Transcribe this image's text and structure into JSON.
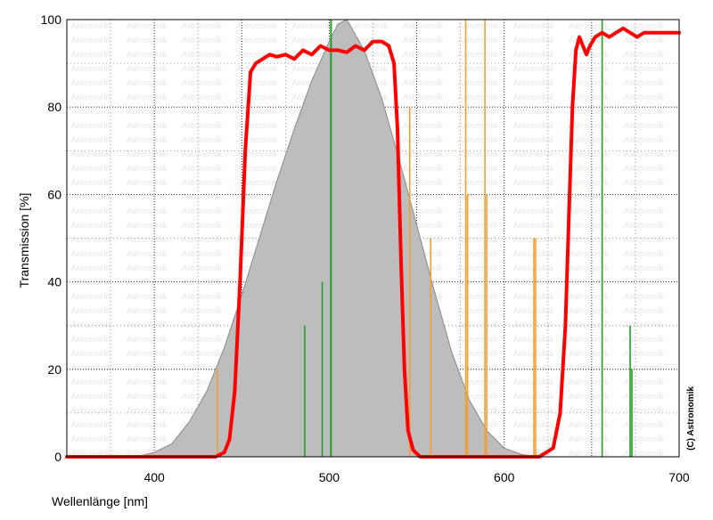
{
  "chart_data": {
    "type": "line",
    "title": "",
    "xlabel": "Wellenlänge [nm]",
    "ylabel": "Transmission [%]",
    "xlim": [
      350,
      700
    ],
    "ylim": [
      0,
      100
    ],
    "x_ticks": [
      400,
      500,
      600,
      700
    ],
    "y_ticks": [
      0,
      20,
      40,
      60,
      80,
      100
    ],
    "grid": true,
    "copyright": "(C) Astronomik",
    "watermark": "Astronomik",
    "colors": {
      "filter": "#ff0000",
      "eye_area": "#bdbdbd",
      "eye_stroke": "#8a8a8a",
      "lines_orange": "#f0a030",
      "lines_green": "#20a020",
      "grid_major": "#000000",
      "grid_minor": "#888888"
    },
    "series": [
      {
        "kind": "area",
        "x": [
          350,
          390,
          400,
          410,
          420,
          430,
          440,
          450,
          460,
          470,
          480,
          490,
          500,
          505,
          510,
          520,
          530,
          540,
          550,
          560,
          570,
          580,
          590,
          600,
          610,
          620,
          700
        ],
        "y": [
          0,
          0,
          1,
          3,
          8,
          15,
          25,
          37,
          50,
          63,
          75,
          86,
          95,
          99,
          100,
          93,
          82,
          68,
          53,
          38,
          24,
          13,
          6,
          2,
          0.5,
          0,
          0
        ]
      },
      {
        "kind": "line",
        "x": [
          350,
          435,
          440,
          443,
          446,
          449,
          452,
          455,
          458,
          462,
          466,
          470,
          475,
          480,
          485,
          490,
          495,
          500,
          505,
          510,
          515,
          520,
          525,
          530,
          534,
          537,
          539,
          541,
          543,
          545,
          548,
          552,
          560,
          600,
          620,
          628,
          632,
          635,
          637,
          639,
          641,
          643,
          645,
          647,
          649,
          652,
          656,
          660,
          664,
          668,
          672,
          676,
          680,
          686,
          692,
          700
        ],
        "y": [
          0,
          0,
          1,
          4,
          15,
          40,
          70,
          88,
          90,
          91,
          92,
          91.5,
          92,
          91,
          93,
          92,
          94,
          93,
          93,
          92.5,
          94,
          93,
          95,
          95,
          94,
          90,
          75,
          45,
          20,
          6,
          1.5,
          0,
          0,
          0,
          0,
          2,
          10,
          30,
          55,
          80,
          93,
          96,
          94,
          92,
          94,
          96,
          97,
          96,
          97,
          98,
          97,
          96,
          97,
          97,
          97,
          97
        ]
      }
    ],
    "spectral_lines": [
      {
        "x": 436,
        "y": 20,
        "color": "orange"
      },
      {
        "x": 546,
        "y": 80,
        "color": "orange"
      },
      {
        "x": 558,
        "y": 50,
        "color": "orange"
      },
      {
        "x": 578,
        "y": 100,
        "color": "orange"
      },
      {
        "x": 579,
        "y": 60,
        "color": "orange"
      },
      {
        "x": 589,
        "y": 100,
        "color": "orange"
      },
      {
        "x": 590,
        "y": 60,
        "color": "orange"
      },
      {
        "x": 617,
        "y": 50,
        "color": "orange"
      },
      {
        "x": 618,
        "y": 50,
        "color": "orange"
      },
      {
        "x": 486,
        "y": 30,
        "color": "green"
      },
      {
        "x": 496,
        "y": 40,
        "color": "green"
      },
      {
        "x": 501,
        "y": 100,
        "color": "green"
      },
      {
        "x": 656,
        "y": 100,
        "color": "green"
      },
      {
        "x": 672,
        "y": 30,
        "color": "green"
      },
      {
        "x": 673,
        "y": 20,
        "color": "green"
      }
    ]
  }
}
